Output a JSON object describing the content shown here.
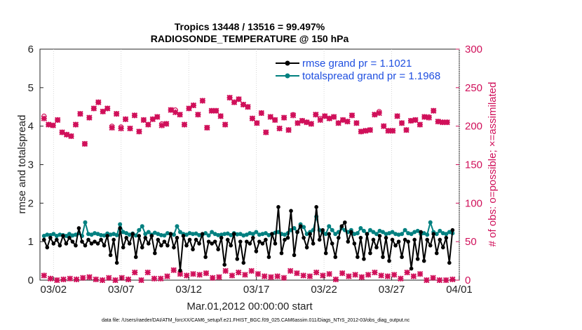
{
  "chart_data": {
    "type": "line",
    "title_line1": "Tropics 13448 / 13516 = 99.497%",
    "title_line2": "RADIOSONDE_TEMPERATURE @ 150 hPa",
    "xlabel": "Mar.01,2012 00:00:00 start",
    "ylabel_left": "rmse and totalspread",
    "ylabel_right": "# of obs: o=possible; ×=assimilated",
    "footer": "data file: /Users/raeder/DAI/ATM_forcXX/CAM6_setup/f.e21.FHIST_BGC.f09_025.CAM6assim.011/Diags_NTrS_2012-03/obs_diag_output.nc",
    "xlim": [
      1,
      32
    ],
    "ylim_left": [
      0,
      6
    ],
    "ylim_right": [
      0,
      300
    ],
    "x_ticks": [
      2,
      7,
      12,
      17,
      22,
      27,
      32
    ],
    "x_tick_labels": [
      "03/02",
      "03/07",
      "03/12",
      "03/17",
      "03/22",
      "03/27",
      "04/01"
    ],
    "y_left_ticks": [
      0,
      1,
      2,
      3,
      4,
      5,
      6
    ],
    "y_left_tick_labels": [
      "0",
      "1",
      "2",
      "3",
      "4",
      "5",
      "6"
    ],
    "y_right_ticks": [
      0,
      50,
      100,
      150,
      200,
      250,
      300
    ],
    "y_right_tick_labels": [
      "0",
      "50",
      "100",
      "150",
      "200",
      "250",
      "300"
    ],
    "x_step_days": 0.25,
    "x_start": 1.0,
    "legend": {
      "location": "top-right",
      "entries": [
        {
          "label": "rmse grand pr = 1.1021",
          "color": "#000000"
        },
        {
          "label": "totalspread grand pr = 1.1968",
          "color": "#00807f"
        }
      ]
    },
    "colors": {
      "rmse": "#000000",
      "spread": "#008080",
      "obs": "#d0105a",
      "legend_text": "#1f4fe0"
    },
    "series": [
      {
        "name": "rmse",
        "axis": "left",
        "values": [
          1.05,
          0.85,
          1.1,
          0.95,
          1.05,
          0.9,
          1.15,
          0.95,
          1.1,
          1.0,
          0.9,
          1.35,
          1.0,
          0.9,
          1.05,
          0.95,
          1.0,
          0.95,
          1.05,
          0.9,
          1.15,
          0.65,
          1.05,
          0.45,
          1.35,
          0.85,
          1.1,
          0.95,
          1.2,
          0.6,
          1.15,
          0.85,
          1.1,
          0.95,
          1.15,
          0.7,
          1.05,
          0.9,
          1.0,
          0.9,
          1.2,
          0.85,
          1.1,
          0.25,
          1.15,
          0.9,
          1.05,
          0.8,
          1.05,
          0.95,
          1.2,
          0.6,
          1.0,
          0.95,
          1.0,
          0.8,
          1.1,
          0.4,
          1.05,
          0.9,
          1.2,
          0.55,
          1.0,
          0.45,
          1.0,
          0.95,
          1.1,
          0.75,
          1.0,
          0.95,
          1.05,
          0.6,
          1.2,
          0.95,
          1.9,
          0.7,
          1.05,
          1.1,
          1.8,
          0.65,
          1.25,
          1.4,
          1.1,
          0.85,
          1.2,
          0.95,
          1.9,
          1.05,
          1.3,
          0.7,
          1.2,
          0.95,
          0.6,
          1.1,
          1.4,
          1.5,
          1.0,
          1.25,
          0.95,
          0.6,
          1.1,
          0.55,
          1.2,
          0.7,
          1.05,
          0.85,
          1.15,
          0.6,
          1.1,
          0.5,
          1.05,
          0.9,
          1.0,
          0.6,
          1.05,
          1.0,
          0.3,
          1.05,
          0.55,
          1.25,
          0.5,
          1.05,
          0.9,
          1.2,
          0.7,
          1.05,
          0.85,
          1.1,
          0.45,
          1.3
        ],
        "connect": [
          [
            0,
            2
          ],
          [
            2,
            4
          ],
          [
            4,
            6
          ],
          [
            6,
            8
          ],
          [
            8,
            10
          ],
          [
            10,
            12
          ],
          [
            12,
            14
          ],
          [
            14,
            16
          ],
          [
            16,
            18
          ],
          [
            18,
            20
          ],
          [
            20,
            22
          ],
          [
            22,
            24
          ],
          [
            24,
            26
          ],
          [
            26,
            28
          ],
          [
            28,
            30
          ],
          [
            30,
            32
          ],
          [
            32,
            34
          ],
          [
            34,
            36
          ],
          [
            36,
            38
          ],
          [
            38,
            40
          ],
          [
            40,
            42
          ],
          [
            42,
            44
          ],
          [
            44,
            46
          ],
          [
            46,
            48
          ],
          [
            48,
            50
          ],
          [
            50,
            52
          ],
          [
            52,
            54
          ],
          [
            54,
            56
          ],
          [
            56,
            58
          ],
          [
            58,
            60
          ],
          [
            60,
            62
          ],
          [
            62,
            64
          ],
          [
            64,
            66
          ],
          [
            66,
            68
          ],
          [
            68,
            70
          ],
          [
            70,
            72
          ],
          [
            72,
            74
          ],
          [
            74,
            76
          ],
          [
            76,
            78
          ],
          [
            78,
            80
          ],
          [
            80,
            82
          ],
          [
            82,
            84
          ],
          [
            84,
            86
          ],
          [
            86,
            88
          ],
          [
            88,
            90
          ],
          [
            90,
            92
          ],
          [
            92,
            94
          ],
          [
            94,
            96
          ],
          [
            96,
            98
          ],
          [
            98,
            100
          ],
          [
            100,
            102
          ],
          [
            102,
            104
          ],
          [
            104,
            106
          ],
          [
            106,
            108
          ],
          [
            108,
            110
          ],
          [
            110,
            112
          ],
          [
            112,
            114
          ],
          [
            114,
            116
          ],
          [
            116,
            118
          ],
          [
            118,
            120
          ],
          [
            120,
            122
          ],
          [
            122,
            124
          ],
          [
            124,
            126
          ],
          [
            126,
            128
          ],
          [
            128,
            129
          ]
        ]
      },
      {
        "name": "totalspread",
        "axis": "left",
        "values": [
          1.15,
          1.18,
          1.17,
          1.2,
          1.15,
          1.18,
          1.17,
          1.15,
          1.2,
          1.16,
          1.18,
          1.22,
          1.15,
          1.5,
          1.2,
          1.18,
          1.22,
          1.2,
          1.17,
          1.16,
          1.21,
          1.18,
          1.2,
          1.17,
          1.45,
          1.25,
          1.22,
          1.18,
          1.21,
          1.16,
          1.3,
          1.4,
          1.2,
          1.25,
          1.18,
          1.23,
          1.2,
          1.17,
          1.16,
          1.22,
          1.2,
          1.18,
          1.4,
          1.25,
          1.2,
          1.18,
          1.22,
          1.2,
          1.21,
          1.17,
          1.18,
          1.22,
          1.16,
          1.25,
          1.2,
          1.17,
          1.18,
          1.2,
          1.21,
          1.17,
          1.22,
          1.19,
          1.2,
          1.16,
          1.18,
          1.22,
          1.2,
          1.25,
          1.18,
          1.2,
          1.22,
          1.17,
          1.2,
          1.23,
          1.25,
          1.2,
          1.18,
          1.22,
          1.3,
          1.35,
          1.25,
          1.45,
          1.38,
          1.2,
          1.25,
          1.3,
          1.65,
          1.3,
          1.25,
          1.2,
          1.4,
          1.3,
          1.2,
          1.25,
          1.35,
          1.3,
          1.25,
          1.3,
          1.2,
          1.22,
          1.35,
          1.28,
          1.2,
          1.3,
          1.25,
          1.2,
          1.28,
          1.25,
          1.2,
          1.22,
          1.25,
          1.2,
          1.18,
          1.2,
          1.3,
          1.22,
          1.2,
          1.25,
          1.28,
          1.2,
          1.22,
          1.18,
          1.5,
          1.25,
          1.2,
          1.28,
          1.22,
          1.2,
          1.25,
          1.22
        ]
      },
      {
        "name": "obs_possible",
        "axis": "right",
        "values": [
          213,
          202,
          201,
          208,
          192,
          189,
          187,
          202,
          216,
          177,
          211,
          223,
          231,
          219,
          223,
          200,
          216,
          199,
          209,
          197,
          214,
          193,
          208,
          202,
          209,
          212,
          203,
          203,
          221,
          221,
          215,
          202,
          223,
          227,
          215,
          233,
          198,
          220,
          220,
          213,
          202,
          237,
          231,
          235,
          228,
          225,
          210,
          204,
          217,
          192,
          212,
          208,
          197,
          211,
          195,
          215,
          204,
          207,
          205,
          203,
          215,
          210,
          213,
          210,
          212,
          204,
          208,
          206,
          214,
          204,
          193,
          194,
          195,
          215,
          219,
          200,
          194,
          194,
          213,
          204,
          195,
          207,
          208,
          202,
          212,
          212,
          220,
          206,
          205,
          205
        ]
      },
      {
        "name": "obs_assimilated",
        "axis": "right",
        "values": [
          210,
          202,
          201,
          208,
          192,
          189,
          187,
          202,
          216,
          177,
          211,
          223,
          231,
          219,
          223,
          198,
          216,
          197,
          209,
          197,
          214,
          193,
          208,
          202,
          209,
          212,
          201,
          203,
          221,
          218,
          215,
          202,
          223,
          227,
          215,
          233,
          198,
          220,
          220,
          213,
          202,
          237,
          231,
          235,
          228,
          225,
          210,
          204,
          217,
          192,
          212,
          208,
          197,
          211,
          195,
          214,
          204,
          207,
          205,
          203,
          215,
          208,
          213,
          210,
          212,
          204,
          208,
          206,
          214,
          204,
          193,
          194,
          195,
          215,
          217,
          200,
          194,
          194,
          213,
          204,
          195,
          207,
          208,
          202,
          212,
          211,
          220,
          206,
          205,
          205
        ]
      },
      {
        "name": "obs_low",
        "axis": "right",
        "values": [
          6,
          2,
          0,
          1,
          2,
          1,
          3,
          4,
          1,
          0,
          3,
          0,
          3,
          1,
          10,
          0,
          10,
          2,
          2,
          5,
          13,
          8,
          6,
          8,
          7,
          9,
          3,
          4,
          12,
          6,
          10,
          7,
          12,
          8,
          5,
          4,
          5,
          3,
          12,
          9,
          6,
          5,
          10,
          6,
          8,
          1,
          9,
          5,
          7,
          4,
          7,
          10,
          6,
          5,
          7,
          2,
          10,
          5,
          8,
          0,
          3,
          0,
          0,
          1
        ]
      }
    ]
  }
}
